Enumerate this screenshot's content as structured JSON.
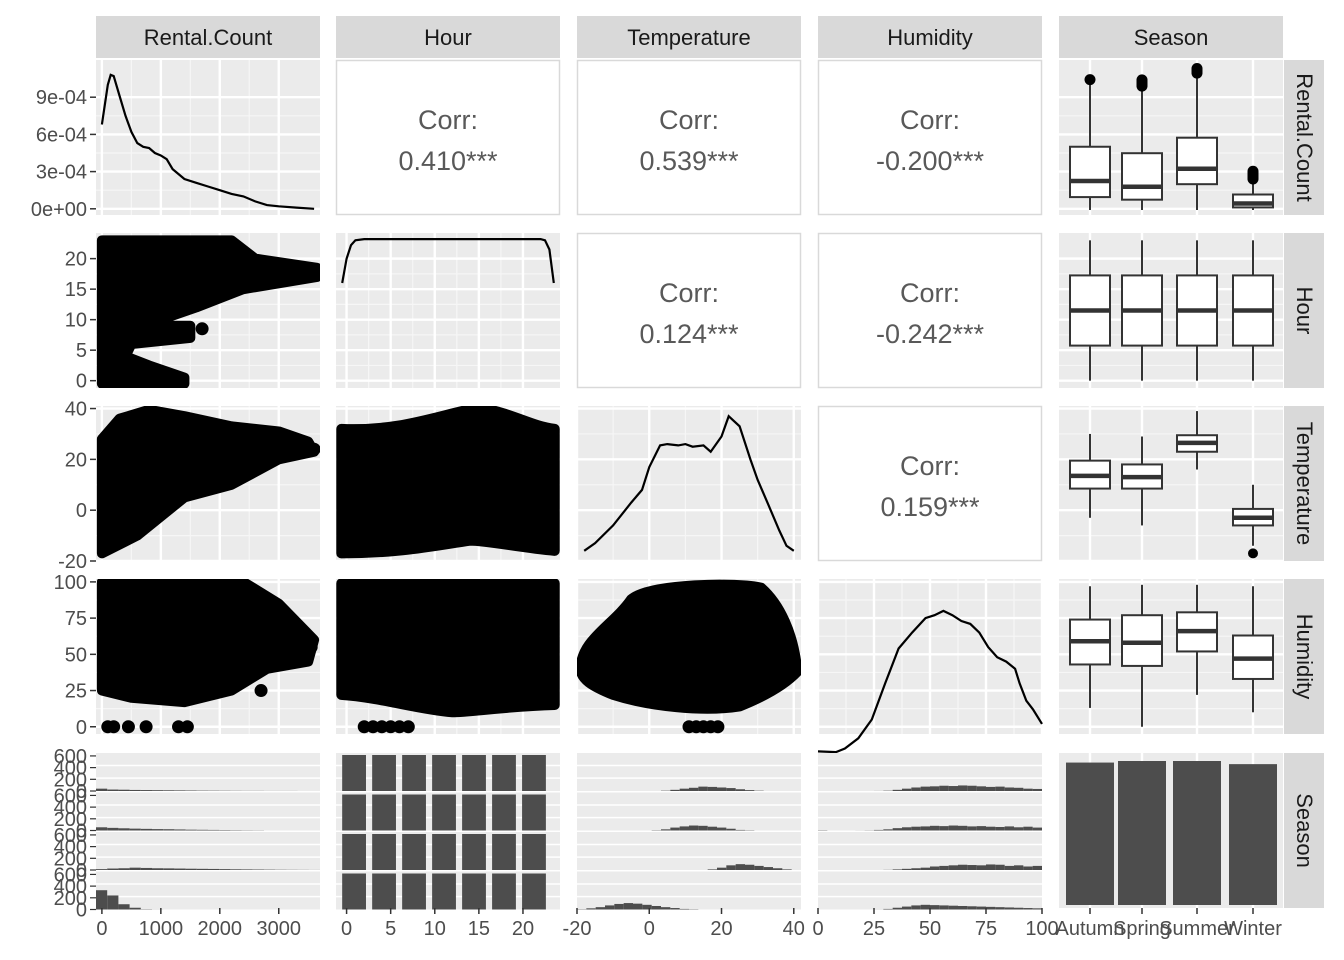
{
  "chart_data": {
    "type": "scatter-matrix",
    "variables": [
      "Rental.Count",
      "Hour",
      "Temperature",
      "Humidity",
      "Season"
    ],
    "col_strips": [
      "Rental.Count",
      "Hour",
      "Temperature",
      "Humidity",
      "Season"
    ],
    "row_strips": [
      "Rental.Count",
      "Hour",
      "Temperature",
      "Humidity",
      "Season"
    ],
    "corr_label": "Corr:",
    "correlations": [
      {
        "row": 0,
        "col": 1,
        "value": "0.410***"
      },
      {
        "row": 0,
        "col": 2,
        "value": "0.539***"
      },
      {
        "row": 0,
        "col": 3,
        "value": "-0.200***"
      },
      {
        "row": 1,
        "col": 2,
        "value": "0.124***"
      },
      {
        "row": 1,
        "col": 3,
        "value": "-0.242***"
      },
      {
        "row": 2,
        "col": 3,
        "value": "0.159***"
      }
    ],
    "axes": {
      "x": [
        {
          "range": [
            -100,
            3700
          ],
          "ticks": [
            0,
            1000,
            2000,
            3000
          ],
          "labels": [
            "0",
            "1000",
            "2000",
            "3000"
          ]
        },
        {
          "range": [
            -1.2,
            24.2
          ],
          "ticks": [
            0,
            5,
            10,
            15,
            20
          ],
          "labels": [
            "0",
            "5",
            "10",
            "15",
            "20"
          ]
        },
        {
          "range": [
            -20,
            42
          ],
          "ticks": [
            -20,
            0,
            20,
            40
          ],
          "labels": [
            "-20",
            "0",
            "20",
            "40"
          ]
        },
        {
          "range": [
            0,
            100
          ],
          "ticks": [
            0,
            25,
            50,
            75,
            100
          ],
          "labels": [
            "0",
            "25",
            "50",
            "75",
            "100"
          ]
        },
        {
          "categories": [
            "Autumn",
            "Spring",
            "Summer",
            "Winter"
          ]
        }
      ],
      "y": [
        {
          "range": [
            -5e-05,
            0.0012
          ],
          "ticks": [
            0,
            0.0003,
            0.0006,
            0.0009
          ],
          "labels": [
            "0e+00",
            "3e-04",
            "6e-04",
            "9e-04"
          ]
        },
        {
          "range": [
            -1.2,
            24.2
          ],
          "ticks": [
            0,
            5,
            10,
            15,
            20
          ],
          "labels": [
            "0",
            "5",
            "10",
            "15",
            "20"
          ]
        },
        {
          "range": [
            -20,
            41
          ],
          "ticks": [
            -20,
            0,
            20,
            40
          ],
          "labels": [
            "-20",
            "0",
            "20",
            "40"
          ]
        },
        {
          "range": [
            -5,
            102
          ],
          "ticks": [
            0,
            25,
            50,
            75,
            100
          ],
          "labels": [
            "0",
            "25",
            "50",
            "75",
            "100"
          ]
        },
        {
          "sub_ticks": [
            0,
            200,
            400,
            600
          ],
          "sub_labels": [
            "0",
            "200",
            "400",
            "600"
          ]
        }
      ]
    },
    "densities": {
      "rental_count": {
        "x": [
          0,
          100,
          150,
          200,
          300,
          400,
          500,
          600,
          700,
          800,
          900,
          1000,
          1100,
          1200,
          1400,
          1600,
          1800,
          2000,
          2200,
          2400,
          2600,
          2800,
          3000,
          3300,
          3600
        ],
        "y": [
          0.00068,
          0.001,
          0.00108,
          0.00107,
          0.00091,
          0.00075,
          0.00062,
          0.00053,
          0.0005,
          0.00049,
          0.00045,
          0.00043,
          0.0004,
          0.00032,
          0.00024,
          0.00021,
          0.00018,
          0.00015,
          0.00012,
          0.0001,
          6e-05,
          3e-05,
          2e-05,
          1e-05,
          0.0
        ]
      },
      "hour": {
        "x": [
          -0.5,
          0,
          0.5,
          1,
          2,
          4,
          8,
          12,
          16,
          20,
          22,
          22.5,
          23,
          23.5
        ],
        "y": [
          16,
          20,
          22.2,
          23,
          23.2,
          23.2,
          23.2,
          23.2,
          23.2,
          23.2,
          23.2,
          23,
          21.5,
          16
        ]
      },
      "temperature": {
        "x": [
          -18,
          -15,
          -10,
          -5,
          -2,
          0,
          3,
          5,
          8,
          10,
          12,
          15,
          17,
          20,
          22,
          25,
          28,
          30,
          33,
          36,
          38,
          40
        ],
        "y": [
          -16,
          -13,
          -6,
          3,
          8,
          17,
          25.5,
          26,
          25.5,
          26,
          25,
          25.5,
          23,
          29,
          37,
          33,
          20,
          12,
          2,
          -8,
          -14,
          -16
        ]
      },
      "humidity": {
        "x": [
          0,
          8,
          12,
          18,
          24,
          30,
          36,
          42,
          48,
          52,
          56,
          60,
          64,
          68,
          72,
          76,
          80,
          84,
          88,
          90,
          93,
          96,
          100
        ],
        "y": [
          -17,
          -17.5,
          -15,
          -8,
          5,
          30,
          54,
          65,
          75,
          77,
          80,
          77,
          73,
          71,
          65,
          55,
          48,
          45,
          40,
          30,
          18,
          12,
          2
        ]
      }
    },
    "scatter": {
      "count_vs_hour": {
        "x": [
          100,
          500,
          1000,
          1500,
          2000,
          2500,
          3000,
          3500,
          600,
          1200,
          400,
          800,
          300
        ],
        "y": [
          20,
          20,
          19,
          19,
          18.5,
          18,
          18,
          18,
          8,
          8,
          4,
          2,
          0
        ]
      },
      "count_vs_temp": {
        "x": [
          0,
          500,
          1000,
          1500,
          2000,
          2500,
          3000,
          3500,
          200,
          800
        ],
        "y": [
          25,
          38,
          38,
          36,
          33,
          30,
          28,
          24,
          -17,
          -10
        ]
      },
      "count_vs_humidity": {
        "x": [
          0,
          500,
          1000,
          2000,
          2500,
          3000,
          3300,
          3500,
          500,
          1100,
          1400
        ],
        "y": [
          97,
          97,
          95,
          90,
          80,
          65,
          80,
          55,
          0,
          0,
          0
        ]
      }
    },
    "boxplots": {
      "categories": [
        "Autumn",
        "Spring",
        "Summer",
        "Winter"
      ],
      "rental_count": [
        {
          "q1": 100,
          "med": 225,
          "q3": 490,
          "lo": 0,
          "hi": 1000
        },
        {
          "q1": 80,
          "med": 180,
          "q3": 440,
          "lo": 0,
          "hi": 950
        },
        {
          "q1": 200,
          "med": 320,
          "q3": 560,
          "lo": 0,
          "hi": 1050
        },
        {
          "q1": 20,
          "med": 50,
          "q3": 120,
          "lo": 0,
          "hi": 230
        }
      ],
      "hour": [
        {
          "q1": 5.75,
          "med": 11.5,
          "q3": 17.25,
          "lo": 0,
          "hi": 23
        },
        {
          "q1": 5.75,
          "med": 11.5,
          "q3": 17.25,
          "lo": 0,
          "hi": 23
        },
        {
          "q1": 5.75,
          "med": 11.5,
          "q3": 17.25,
          "lo": 0,
          "hi": 23
        },
        {
          "q1": 5.75,
          "med": 11.5,
          "q3": 17.25,
          "lo": 0,
          "hi": 23
        }
      ],
      "temperature": [
        {
          "q1": 8.5,
          "med": 13.5,
          "q3": 19.5,
          "lo": -3,
          "hi": 30
        },
        {
          "q1": 8.5,
          "med": 13,
          "q3": 18,
          "lo": -6,
          "hi": 29
        },
        {
          "q1": 23,
          "med": 26.5,
          "q3": 29.5,
          "lo": 16,
          "hi": 39
        },
        {
          "q1": -6,
          "med": -3,
          "q3": 0.5,
          "lo": -14,
          "hi": 10,
          "outliers": [
            -17
          ]
        }
      ],
      "humidity": [
        {
          "q1": 43,
          "med": 59,
          "q3": 74,
          "lo": 13,
          "hi": 97
        },
        {
          "q1": 42,
          "med": 58,
          "q3": 77,
          "lo": 0,
          "hi": 98
        },
        {
          "q1": 52,
          "med": 66,
          "q3": 79,
          "lo": 22,
          "hi": 98
        },
        {
          "q1": 33,
          "med": 47,
          "q3": 63,
          "lo": 10,
          "hi": 97
        }
      ]
    },
    "season_counts": [
      2184,
      2208,
      2208,
      2160
    ],
    "histograms": {
      "rental_count": [
        [
          40,
          25,
          22,
          18,
          16,
          14,
          12,
          10,
          8,
          6,
          5,
          4,
          3,
          2,
          2,
          1,
          1,
          1,
          0,
          0
        ],
        [
          55,
          45,
          38,
          32,
          28,
          24,
          22,
          18,
          14,
          12,
          10,
          8,
          6,
          4,
          3,
          0,
          0,
          0,
          0,
          0
        ],
        [
          15,
          25,
          30,
          40,
          35,
          30,
          28,
          25,
          22,
          20,
          18,
          15,
          12,
          10,
          8,
          6,
          4,
          3,
          2,
          1
        ],
        [
          330,
          240,
          90,
          30,
          5,
          1,
          0,
          0,
          0,
          0,
          0,
          0,
          0,
          0,
          0,
          0,
          0,
          0,
          0,
          0
        ]
      ],
      "temperature": [
        [
          0,
          0,
          0,
          0,
          0,
          0,
          0,
          0,
          0,
          5,
          20,
          40,
          55,
          75,
          70,
          60,
          50,
          30,
          15,
          5,
          0,
          0,
          0,
          0
        ],
        [
          0,
          0,
          0,
          0,
          0,
          0,
          0,
          0,
          5,
          20,
          50,
          70,
          85,
          80,
          65,
          50,
          30,
          10,
          5,
          0,
          0,
          0,
          0,
          0
        ],
        [
          0,
          0,
          0,
          0,
          0,
          0,
          0,
          0,
          0,
          0,
          0,
          0,
          0,
          0,
          10,
          40,
          80,
          100,
          90,
          70,
          50,
          30,
          10,
          0
        ],
        [
          5,
          20,
          40,
          70,
          95,
          110,
          100,
          80,
          60,
          40,
          25,
          10,
          5,
          0,
          0,
          0,
          0,
          0,
          0,
          0,
          0,
          0,
          0,
          0
        ]
      ],
      "humidity": [
        [
          0,
          0,
          0,
          0,
          0,
          0,
          1,
          5,
          20,
          40,
          60,
          75,
          80,
          90,
          85,
          95,
          90,
          80,
          70,
          75,
          60,
          55,
          40,
          35
        ],
        [
          5,
          0,
          0,
          0,
          1,
          3,
          10,
          20,
          40,
          55,
          65,
          70,
          80,
          75,
          85,
          80,
          70,
          75,
          65,
          60,
          70,
          55,
          65,
          50
        ],
        [
          0,
          0,
          0,
          0,
          0,
          0,
          0,
          2,
          10,
          20,
          30,
          40,
          60,
          70,
          80,
          90,
          85,
          80,
          95,
          90,
          70,
          80,
          60,
          70
        ],
        [
          0,
          0,
          0,
          0,
          0,
          0,
          1,
          10,
          30,
          50,
          70,
          80,
          75,
          70,
          65,
          60,
          55,
          50,
          45,
          40,
          35,
          30,
          25,
          20
        ]
      ]
    }
  }
}
